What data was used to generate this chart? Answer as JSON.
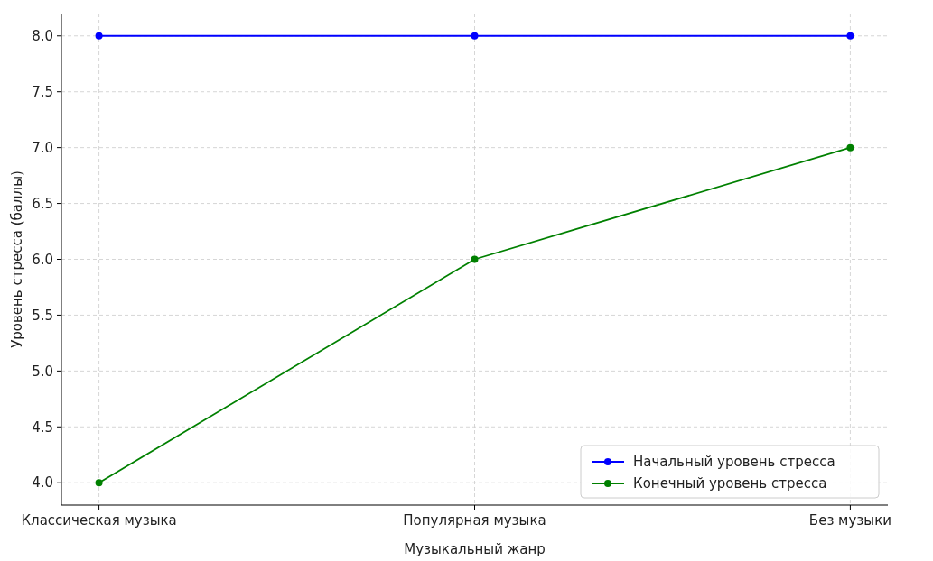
{
  "chart_data": {
    "type": "line",
    "xlabel": "Музыкальный жанр",
    "ylabel": "Уровень стресса (баллы)",
    "categories": [
      "Классическая музыка",
      "Популярная музыка",
      "Без музыки"
    ],
    "series": [
      {
        "name": "Начальный уровень стресса",
        "color": "#0000ff",
        "values": [
          8,
          8,
          8
        ]
      },
      {
        "name": "Конечный уровень стресса",
        "color": "#008000",
        "values": [
          4,
          6,
          7
        ]
      }
    ],
    "ylim": [
      3.8,
      8.2
    ],
    "yticks": [
      {
        "value": 4,
        "label": "4.0"
      },
      {
        "value": 4.5,
        "label": "4.5"
      },
      {
        "value": 5,
        "label": "5.0"
      },
      {
        "value": 5.5,
        "label": "5.5"
      },
      {
        "value": 6,
        "label": "6.0"
      },
      {
        "value": 6.5,
        "label": "6.5"
      },
      {
        "value": 7,
        "label": "7.0"
      },
      {
        "value": 7.5,
        "label": "7.5"
      },
      {
        "value": 8,
        "label": "8.0"
      }
    ],
    "grid": true,
    "legend": "bottom right",
    "marker": "circle",
    "line_style": "solid"
  }
}
